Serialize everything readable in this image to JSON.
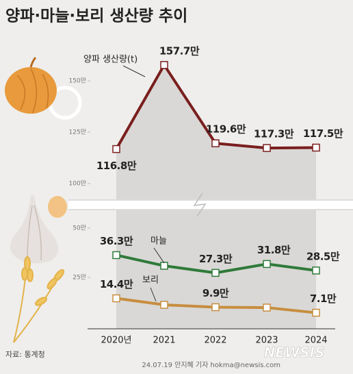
{
  "chart_data": {
    "type": "line",
    "title": "양파·마늘·보리 생산량 추이",
    "categories": [
      "2020년",
      "2021",
      "2022",
      "2023",
      "2024"
    ],
    "series": [
      {
        "name": "양파 생산량(t)",
        "color": "#7a1e1e",
        "axis": "y2",
        "values": [
          116.8,
          157.7,
          119.6,
          117.3,
          117.5
        ],
        "value_labels": [
          "116.8만",
          "157.7만",
          "119.6만",
          "117.3만",
          "117.5만"
        ]
      },
      {
        "name": "마늘",
        "color": "#2f7a3a",
        "values": [
          36.3,
          30.9,
          27.3,
          31.8,
          28.5
        ],
        "value_labels": [
          "36.3만",
          null,
          "27.3만",
          "31.8만",
          "28.5만"
        ]
      },
      {
        "name": "보리",
        "color": "#c78d3f",
        "values": [
          14.4,
          11.1,
          9.9,
          9.7,
          7.1
        ],
        "value_labels": [
          "14.4만",
          null,
          "9.9만",
          null,
          "7.1만"
        ]
      }
    ],
    "ylim": [
      0,
      55
    ],
    "yticks": [
      {
        "value": 25,
        "label": "25만"
      },
      {
        "value": 50,
        "label": "50만"
      }
    ],
    "y2lim": [
      95,
      165
    ],
    "y2ticks": [
      {
        "value": 100,
        "label": "100만"
      },
      {
        "value": 125,
        "label": "125만"
      },
      {
        "value": 150,
        "label": "150만"
      }
    ],
    "source": "자료: 통계청",
    "credit": "24.07.19 안지혜 기자 hokma@newsis.com",
    "logo": "NEWSIS"
  }
}
